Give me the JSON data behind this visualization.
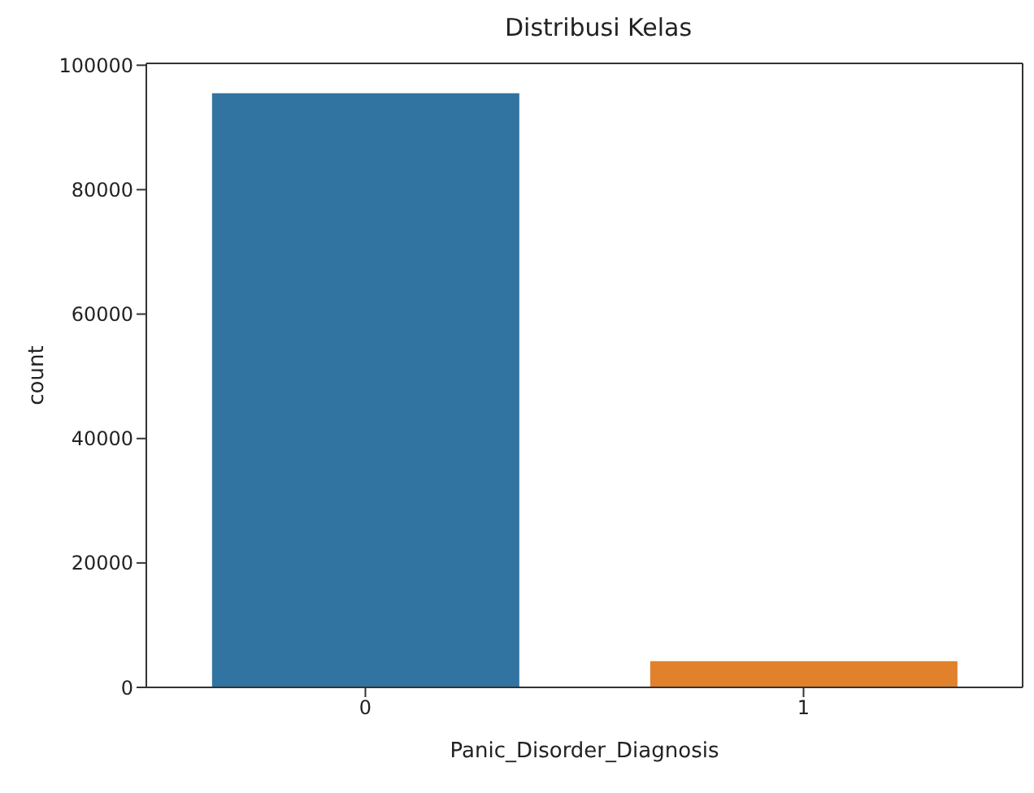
{
  "chart_data": {
    "type": "bar",
    "title": "Distribusi Kelas",
    "xlabel": "Panic_Disorder_Diagnosis",
    "ylabel": "count",
    "categories": [
      "0",
      "1"
    ],
    "values": [
      95500,
      4200
    ],
    "colors": [
      "#3274a1",
      "#e1812c"
    ],
    "ylim": [
      0,
      100300
    ],
    "yticks": [
      0,
      20000,
      40000,
      60000,
      80000,
      100000
    ],
    "grid": false
  }
}
